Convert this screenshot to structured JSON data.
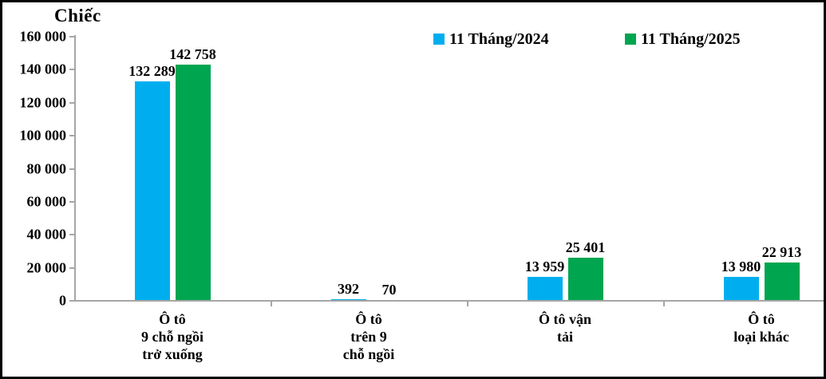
{
  "chart_data": {
    "type": "bar",
    "title": "Chiếc",
    "legend_position": "top",
    "grid": false,
    "background": "#FFFFFF",
    "border_color": "#000000",
    "axis_color": "#A6A6A6",
    "text_color": "#000000",
    "y_axis": {
      "min": 0,
      "max": 160000,
      "step": 20000,
      "tick_labels": [
        "0",
        "20 000",
        "40 000",
        "60 000",
        "80 000",
        "100 000",
        "120 000",
        "140 000",
        "160 000"
      ]
    },
    "categories": [
      {
        "lines": [
          "Ô tô",
          "9 chỗ ngồi",
          "trở xuống"
        ]
      },
      {
        "lines": [
          "Ô tô",
          "trên 9",
          "chỗ ngồi"
        ]
      },
      {
        "lines": [
          "Ô tô vận",
          "tải"
        ]
      },
      {
        "lines": [
          "Ô tô",
          "loại khác"
        ]
      }
    ],
    "series": [
      {
        "name": "11 Tháng/2024",
        "color": "#00AEEF",
        "values": [
          132289,
          392,
          13959,
          13980
        ],
        "labels": [
          "132 289",
          "392",
          "13 959",
          "13 980"
        ]
      },
      {
        "name": "11 Tháng/2025",
        "color": "#00A550",
        "values": [
          142758,
          70,
          25401,
          22913
        ],
        "labels": [
          "142 758",
          "70",
          "25 401",
          "22 913"
        ]
      }
    ]
  }
}
